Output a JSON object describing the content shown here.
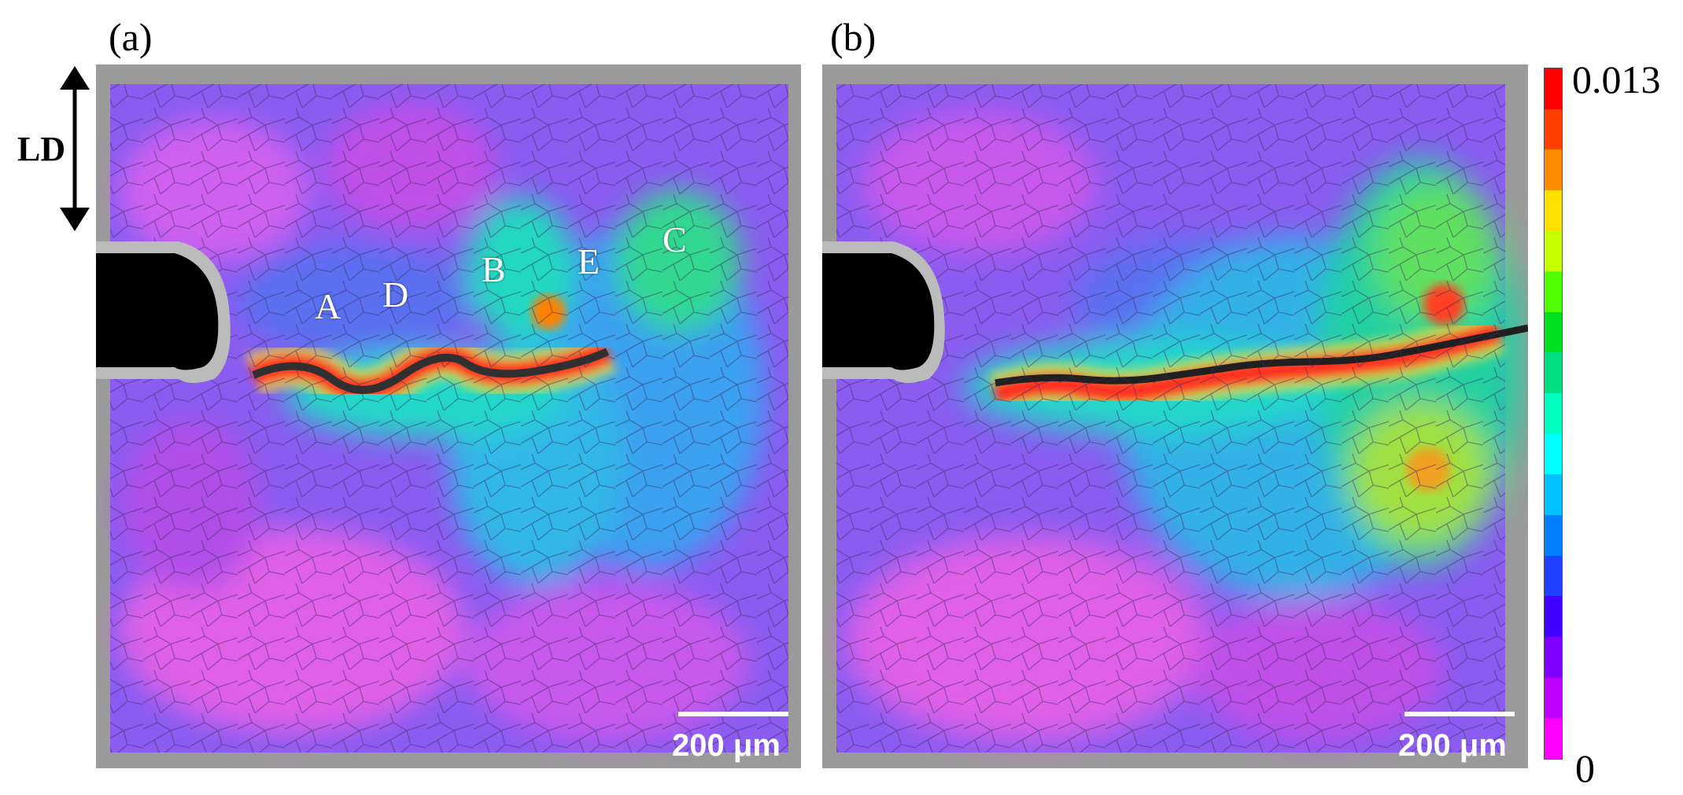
{
  "panels": [
    {
      "label": "(a)",
      "regions": [
        "A",
        "D",
        "B",
        "E",
        "C"
      ],
      "scale_bar": "200 μm"
    },
    {
      "label": "(b)",
      "regions": [],
      "scale_bar": "200 μm"
    }
  ],
  "direction_label": "LD",
  "colorbar": {
    "max_label": "0.013",
    "min_label": "0",
    "colors_top_to_bottom": [
      "#ff0000",
      "#ff4000",
      "#ff8c00",
      "#ffe000",
      "#c8ff00",
      "#50ff00",
      "#00e020",
      "#00e080",
      "#00ffc0",
      "#00ffff",
      "#00c0ff",
      "#0080ff",
      "#2040ff",
      "#4000ff",
      "#8000ff",
      "#c000ff",
      "#ff00ff"
    ]
  }
}
